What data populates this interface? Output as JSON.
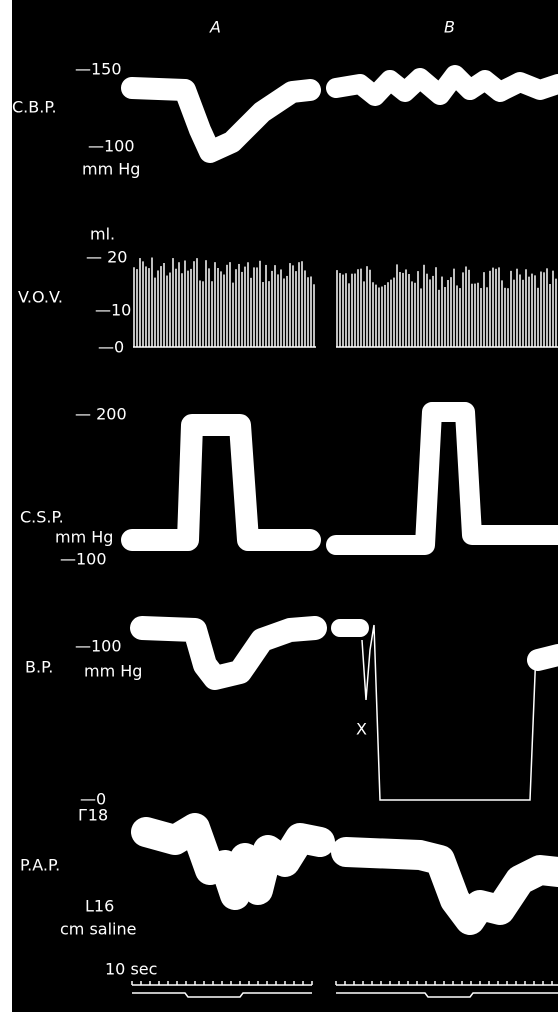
{
  "columns": {
    "a": "A",
    "b": "B"
  },
  "cbp": {
    "name": "C.B.P.",
    "top": "—150",
    "bottom": "—100",
    "unit": "mm Hg"
  },
  "vov": {
    "unit": "ml.",
    "top": "— 20",
    "name": "V.O.V.",
    "mid": "—10",
    "bottom": "—0"
  },
  "csp": {
    "top": "— 200",
    "name": "C.S.P.",
    "unit": "mm Hg",
    "bottom": "—100"
  },
  "bp": {
    "tick": "—100",
    "name": "B.P.",
    "unit": "mm Hg",
    "marker": "X"
  },
  "pap": {
    "zero": "—0",
    "top": "Г18",
    "name": "P.A.P.",
    "bottom": "L16",
    "unit": "cm saline"
  },
  "time": {
    "label": "10 sec"
  }
}
